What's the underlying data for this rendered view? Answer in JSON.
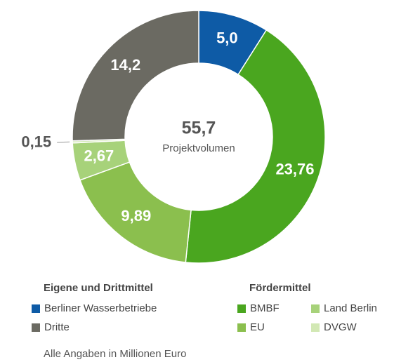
{
  "chart_data": {
    "type": "donut",
    "categories": [
      "Berliner Wasserbetriebe",
      "BMBF",
      "EU",
      "Land Berlin",
      "DVGW",
      "Dritte"
    ],
    "values": [
      5.0,
      23.76,
      9.89,
      2.67,
      0.15,
      14.2
    ],
    "value_labels": [
      "5,0",
      "23,76",
      "9,89",
      "2,67",
      "0,15",
      "14,2"
    ],
    "colors": [
      "#0e5ba6",
      "#4aa61f",
      "#8bbf4e",
      "#a7d27a",
      "#d2e8b4",
      "#6b6a62"
    ],
    "center_value": "55,7",
    "center_text": "Projektvolumen",
    "legend_groups": [
      "Eigene und Drittmittel",
      "Fördermittel"
    ],
    "footnote": "Alle Angaben in Millionen Euro"
  }
}
